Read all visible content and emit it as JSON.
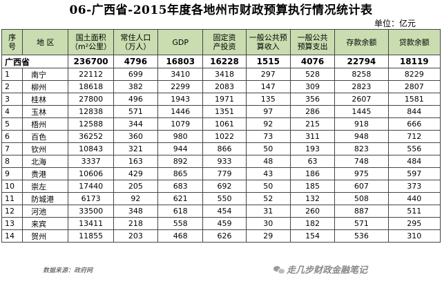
{
  "title": "06-广西省-2015年度各地州市财政预算执行情况统计表",
  "unit": "单位：亿元",
  "headers": {
    "seq": [
      "序",
      "号"
    ],
    "region": "地 区",
    "area": [
      "国土面积",
      "（m²公里）"
    ],
    "pop": [
      "常住人口",
      "（万人）"
    ],
    "gdp": "GDP",
    "fai": [
      "固定资",
      "产投资"
    ],
    "rev": [
      "一般公共预",
      "算收入"
    ],
    "exp": [
      "一般公共",
      "预算支出"
    ],
    "dep": "存款余额",
    "loan": "贷款余额"
  },
  "total": {
    "region": "广西省",
    "area": "236700",
    "pop": "4796",
    "gdp": "16803",
    "fai": "16228",
    "rev": "1515",
    "exp": "4076",
    "dep": "22794",
    "loan": "18119"
  },
  "rows": [
    {
      "seq": "1",
      "region": "南宁",
      "area": "22112",
      "pop": "699",
      "gdp": "3410",
      "fai": "3418",
      "rev": "297",
      "exp": "528",
      "dep": "8258",
      "loan": "8229"
    },
    {
      "seq": "2",
      "region": "柳州",
      "area": "18618",
      "pop": "382",
      "gdp": "2299",
      "fai": "2083",
      "rev": "147",
      "exp": "309",
      "dep": "2823",
      "loan": "2807"
    },
    {
      "seq": "3",
      "region": "桂林",
      "area": "27800",
      "pop": "496",
      "gdp": "1943",
      "fai": "1971",
      "rev": "135",
      "exp": "356",
      "dep": "2607",
      "loan": "1581"
    },
    {
      "seq": "4",
      "region": "玉林",
      "area": "12838",
      "pop": "571",
      "gdp": "1446",
      "fai": "1351",
      "rev": "97",
      "exp": "286",
      "dep": "1445",
      "loan": "844"
    },
    {
      "seq": "5",
      "region": "梧州",
      "area": "12588",
      "pop": "344",
      "gdp": "1079",
      "fai": "1061",
      "rev": "92",
      "exp": "215",
      "dep": "918",
      "loan": "666"
    },
    {
      "seq": "6",
      "region": "百色",
      "area": "36252",
      "pop": "360",
      "gdp": "980",
      "fai": "1022",
      "rev": "73",
      "exp": "311",
      "dep": "948",
      "loan": "712"
    },
    {
      "seq": "7",
      "region": "钦州",
      "area": "10843",
      "pop": "321",
      "gdp": "944",
      "fai": "866",
      "rev": "50",
      "exp": "193",
      "dep": "823",
      "loan": "556"
    },
    {
      "seq": "8",
      "region": "北海",
      "area": "3337",
      "pop": "163",
      "gdp": "892",
      "fai": "933",
      "rev": "48",
      "exp": "63",
      "dep": "748",
      "loan": "484"
    },
    {
      "seq": "9",
      "region": "贵港",
      "area": "10606",
      "pop": "429",
      "gdp": "865",
      "fai": "779",
      "rev": "43",
      "exp": "186",
      "dep": "975",
      "loan": "597"
    },
    {
      "seq": "10",
      "region": "崇左",
      "area": "17440",
      "pop": "205",
      "gdp": "683",
      "fai": "692",
      "rev": "50",
      "exp": "185",
      "dep": "607",
      "loan": "373"
    },
    {
      "seq": "11",
      "region": "防城港",
      "area": "6173",
      "pop": "92",
      "gdp": "621",
      "fai": "550",
      "rev": "52",
      "exp": "132",
      "dep": "508",
      "loan": "440"
    },
    {
      "seq": "12",
      "region": "河池",
      "area": "33500",
      "pop": "348",
      "gdp": "618",
      "fai": "454",
      "rev": "31",
      "exp": "260",
      "dep": "887",
      "loan": "511"
    },
    {
      "seq": "13",
      "region": "来宾",
      "area": "13411",
      "pop": "218",
      "gdp": "558",
      "fai": "459",
      "rev": "30",
      "exp": "182",
      "dep": "571",
      "loan": "295"
    },
    {
      "seq": "14",
      "region": "贺州",
      "area": "11855",
      "pop": "203",
      "gdp": "468",
      "fai": "626",
      "rev": "29",
      "exp": "154",
      "dep": "536",
      "loan": "310"
    }
  ],
  "source": "数据来源：政府网",
  "watermark": "走几步财政金融笔记",
  "colors": {
    "header_bg": "#c9ddb0",
    "border": "#444444"
  }
}
